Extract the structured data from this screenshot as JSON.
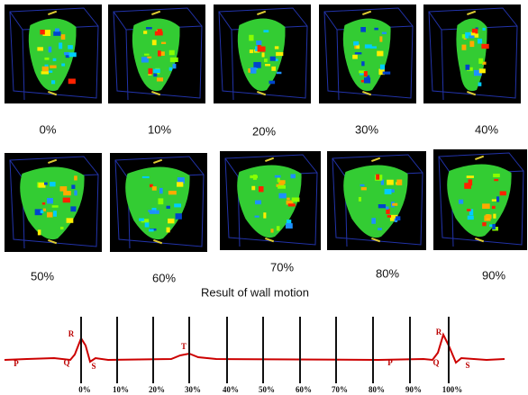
{
  "panels": [
    {
      "label": "0%"
    },
    {
      "label": "10%"
    },
    {
      "label": "20%"
    },
    {
      "label": "30%"
    },
    {
      "label": "40%"
    },
    {
      "label": "50%"
    },
    {
      "label": "60%"
    },
    {
      "label": "70%"
    },
    {
      "label": "80%"
    },
    {
      "label": "90%"
    }
  ],
  "caption": "Result of wall motion",
  "ecg": {
    "wave_labels": [
      "P",
      "R",
      "Q",
      "S",
      "T",
      "P",
      "R",
      "Q",
      "S"
    ],
    "phase_labels": [
      "0%",
      "10%",
      "20%",
      "30%",
      "40%",
      "50%",
      "60%",
      "70%",
      "80%",
      "90%",
      "100%"
    ]
  }
}
